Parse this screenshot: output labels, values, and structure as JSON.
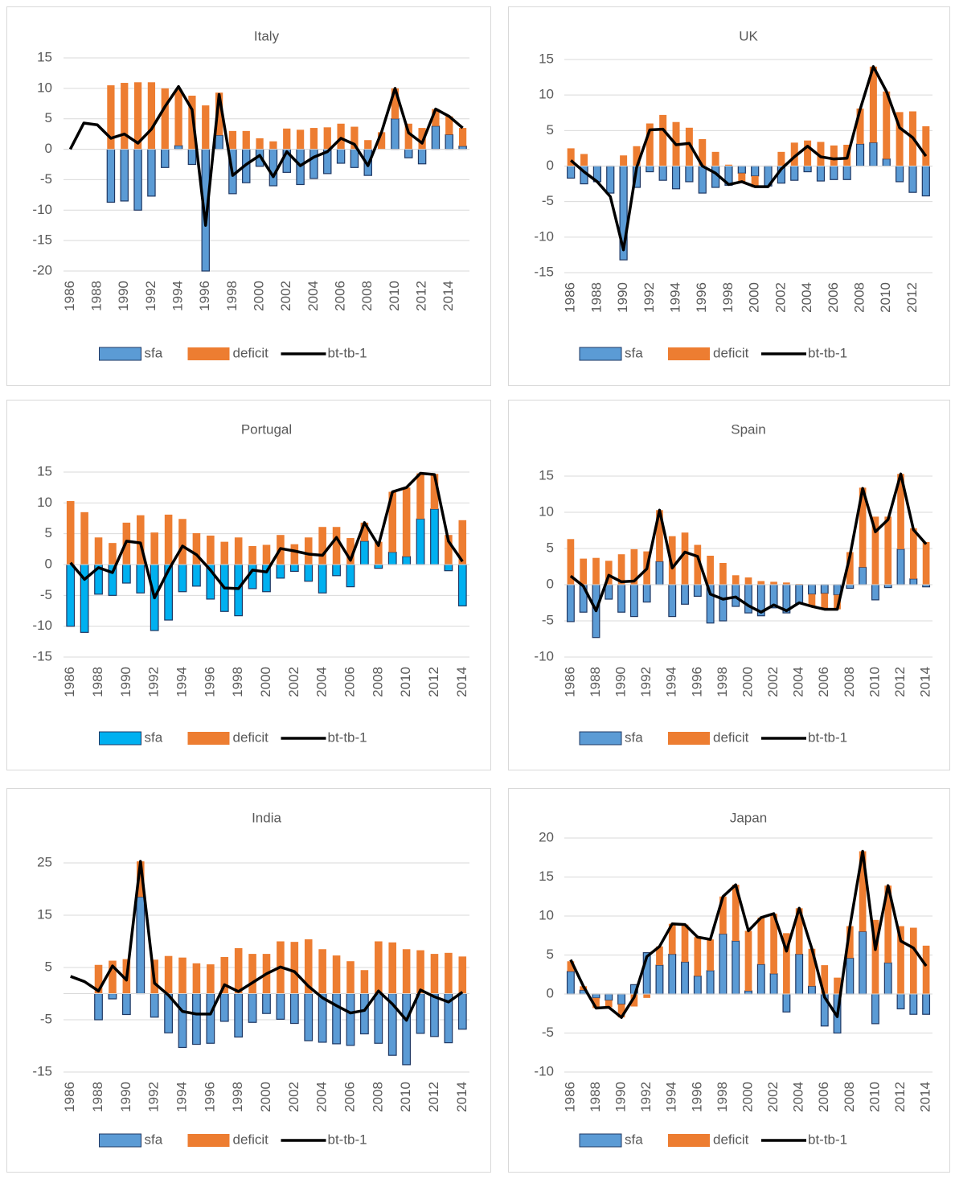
{
  "chart_data": [
    {
      "type": "combo",
      "title": "Italy",
      "grid": true,
      "legend": "bottom",
      "ylim": [
        -20,
        15
      ],
      "yticks": [
        -20,
        -15,
        -10,
        -5,
        0,
        5,
        10,
        15
      ],
      "categories": [
        "1986",
        null,
        "1988",
        null,
        "1990",
        null,
        "1992",
        null,
        "1994",
        null,
        "1996",
        null,
        "1998",
        null,
        "2000",
        null,
        "2002",
        null,
        "2004",
        null,
        "2006",
        null,
        "2008",
        null,
        "2010",
        null,
        "2012",
        null,
        "2014",
        null
      ],
      "series": [
        {
          "name": "sfa",
          "kind": "bar",
          "color": "#5b9bd5",
          "values": [
            null,
            null,
            null,
            -8.7,
            -8.5,
            -10,
            -7.7,
            -3,
            0.6,
            -2.5,
            -20,
            2.3,
            -7.3,
            -5.5,
            -2.8,
            -6,
            -3.8,
            -5.8,
            -4.8,
            -4,
            -2.3,
            -3,
            -4.3,
            null,
            5,
            -1.4,
            -2.4,
            3.8,
            2.4,
            0.5
          ]
        },
        {
          "name": "deficit",
          "kind": "bar",
          "color": "#ed7d31",
          "values": [
            null,
            null,
            null,
            10.5,
            10.9,
            11,
            11,
            10,
            9.2,
            8.8,
            7.2,
            7,
            3,
            3,
            1.8,
            1.3,
            3.4,
            3.2,
            3.5,
            3.6,
            4.2,
            3.7,
            1.5,
            2.8,
            5,
            4.2,
            3.5,
            2.8,
            3,
            3
          ]
        },
        {
          "name": "bt-tb-1",
          "kind": "line",
          "color": "#000000",
          "values": [
            0,
            4.3,
            4,
            1.8,
            2.5,
            1,
            3.3,
            7,
            10.3,
            6.5,
            -12.5,
            9,
            -4.3,
            -2.5,
            -1,
            -4.5,
            -0.4,
            -2.7,
            -1.3,
            -0.4,
            1.8,
            0.8,
            -2.7,
            2.8,
            10,
            2.7,
            1,
            6.6,
            5.4,
            3.5
          ]
        }
      ]
    },
    {
      "type": "combo",
      "title": "UK",
      "grid": true,
      "legend": "bottom",
      "ylim": [
        -15,
        15
      ],
      "yticks": [
        -15,
        -10,
        -5,
        0,
        5,
        10,
        15
      ],
      "categories": [
        "1986",
        null,
        "1988",
        null,
        "1990",
        null,
        "1992",
        null,
        "1994",
        null,
        "1996",
        null,
        "1998",
        null,
        "2000",
        null,
        "2002",
        null,
        "2004",
        null,
        "2006",
        null,
        "2008",
        null,
        "2010",
        null,
        "2012",
        null
      ],
      "series": [
        {
          "name": "sfa",
          "kind": "bar",
          "color": "#5b9bd5",
          "values": [
            -1.7,
            -2.5,
            -2.2,
            -3.8,
            -13.2,
            -3,
            -0.8,
            -2,
            -3.2,
            -2.2,
            -3.8,
            -3,
            -2.7,
            -1,
            -1.4,
            -2.8,
            -2.4,
            -2,
            -0.8,
            -2.1,
            -1.9,
            -1.9,
            3.1,
            3.3,
            1,
            -2.2,
            -3.7,
            -4.2
          ]
        },
        {
          "name": "deficit",
          "kind": "bar",
          "color": "#ed7d31",
          "values": [
            2.5,
            1.7,
            0,
            0,
            1.5,
            2.8,
            6,
            7.2,
            6.2,
            5.4,
            3.8,
            2,
            0.2,
            -1.2,
            -1.6,
            0,
            2,
            3.3,
            3.6,
            3.4,
            2.9,
            3,
            5,
            10.7,
            9.5,
            7.6,
            7.7,
            5.6
          ]
        },
        {
          "name": "bt-tb-1",
          "kind": "line",
          "color": "#000000",
          "values": [
            0.8,
            -0.8,
            -2.2,
            -4.3,
            -11.8,
            -0.2,
            5.1,
            5.2,
            3,
            3.2,
            0,
            -1,
            -2.6,
            -2.2,
            -2.9,
            -2.9,
            -0.4,
            1.3,
            2.8,
            1.3,
            1,
            1.1,
            8,
            14,
            10.5,
            5.4,
            4,
            1.4
          ]
        }
      ]
    },
    {
      "type": "combo",
      "title": "Portugal",
      "grid": true,
      "legend": "bottom",
      "ylim": [
        -15,
        15
      ],
      "yticks": [
        -15,
        -10,
        -5,
        0,
        5,
        10,
        15
      ],
      "categories": [
        "1986",
        null,
        "1988",
        null,
        "1990",
        null,
        "1992",
        null,
        "1994",
        null,
        "1996",
        null,
        "1998",
        null,
        "2000",
        null,
        "2002",
        null,
        "2004",
        null,
        "2006",
        null,
        "2008",
        null,
        "2010",
        null,
        "2012",
        null,
        "2014"
      ],
      "series": [
        {
          "name": "sfa",
          "kind": "bar",
          "color": "#00b0f0",
          "values": [
            -10,
            -11,
            -4.8,
            -5,
            -3,
            -4.6,
            -10.7,
            -9,
            -4.4,
            -3.5,
            -5.6,
            -7.6,
            -8.3,
            -3.9,
            -4.4,
            -2.2,
            -1.1,
            -2.7,
            -4.6,
            -1.8,
            -3.6,
            3.8,
            -0.6,
            2,
            1.3,
            7.4,
            9,
            -1,
            -6.7
          ]
        },
        {
          "name": "deficit",
          "kind": "bar",
          "color": "#ed7d31",
          "values": [
            10.3,
            8.5,
            4.4,
            3.5,
            6.8,
            8,
            5.2,
            8.1,
            7.4,
            5.1,
            4.7,
            3.7,
            4.4,
            3,
            3.2,
            4.8,
            3.3,
            4.4,
            6.1,
            6.1,
            4.3,
            3,
            3.7,
            9.8,
            11.2,
            7.4,
            5.7,
            4.8,
            7.2
          ]
        },
        {
          "name": "bt-tb-1",
          "kind": "line",
          "color": "#000000",
          "values": [
            0.3,
            -2.4,
            -0.5,
            -1.3,
            3.8,
            3.5,
            -5.4,
            -0.9,
            3,
            1.6,
            -0.9,
            -3.8,
            -3.9,
            -0.9,
            -1.2,
            2.6,
            2.2,
            1.7,
            1.5,
            4.4,
            0.7,
            6.8,
            3.1,
            11.8,
            12.5,
            14.8,
            14.6,
            3.8,
            0.5
          ]
        }
      ]
    },
    {
      "type": "combo",
      "title": "Spain",
      "grid": true,
      "legend": "bottom",
      "ylim": [
        -10,
        15
      ],
      "yticks": [
        -10,
        -5,
        0,
        5,
        10,
        15
      ],
      "categories": [
        "1986",
        null,
        "1988",
        null,
        "1990",
        null,
        "1992",
        null,
        "1994",
        null,
        "1996",
        null,
        "1998",
        null,
        "2000",
        null,
        "2002",
        null,
        "2004",
        null,
        "2006",
        null,
        "2008",
        null,
        "2010",
        null,
        "2012",
        null,
        "2014"
      ],
      "series": [
        {
          "name": "sfa",
          "kind": "bar",
          "color": "#5b9bd5",
          "values": [
            -5.1,
            -3.8,
            -7.3,
            -2,
            -3.8,
            -4.4,
            -2.4,
            3.2,
            -4.4,
            -2.7,
            -1.6,
            -5.3,
            -5,
            -3,
            -3.9,
            -4.3,
            -3.2,
            -3.9,
            -2.6,
            -1.3,
            -1.2,
            -1.4,
            -0.5,
            2.4,
            -2.1,
            -0.4,
            4.9,
            0.8,
            -0.3
          ]
        },
        {
          "name": "deficit",
          "kind": "bar",
          "color": "#ed7d31",
          "values": [
            6.3,
            3.6,
            3.7,
            3.3,
            4.2,
            4.9,
            4.6,
            7.1,
            6.7,
            7.2,
            5.5,
            4,
            3,
            1.3,
            1,
            0.5,
            0.4,
            0.3,
            0.1,
            -1.7,
            -2.2,
            -2,
            4.5,
            11,
            9.4,
            9.4,
            10.4,
            7,
            5.9
          ]
        },
        {
          "name": "bt-tb-1",
          "kind": "line",
          "color": "#000000",
          "values": [
            1.2,
            -0.2,
            -3.6,
            1.3,
            0.4,
            0.5,
            2.2,
            10.3,
            2.3,
            4.5,
            3.9,
            -1.3,
            -2,
            -1.7,
            -2.9,
            -3.8,
            -2.8,
            -3.6,
            -2.5,
            -3,
            -3.4,
            -3.4,
            4,
            13.3,
            7.3,
            9,
            15.3,
            7.6,
            5.6
          ]
        }
      ]
    },
    {
      "type": "combo",
      "title": "India",
      "grid": true,
      "legend": "bottom",
      "ylim": [
        -15,
        25
      ],
      "yticks": [
        -15,
        -5,
        5,
        15,
        25
      ],
      "categories": [
        "1986",
        null,
        "1988",
        null,
        "1990",
        null,
        "1992",
        null,
        "1994",
        null,
        "1996",
        null,
        "1998",
        null,
        "2000",
        null,
        "2002",
        null,
        "2004",
        null,
        "2006",
        null,
        "2008",
        null,
        "2010",
        null,
        "2012",
        null,
        "2014"
      ],
      "series": [
        {
          "name": "sfa",
          "kind": "bar",
          "color": "#5b9bd5",
          "values": [
            null,
            null,
            -5,
            -1,
            -4,
            18.5,
            -4.5,
            -7.5,
            -10.3,
            -9.7,
            -9.5,
            -5.3,
            -8.3,
            -5.5,
            -3.8,
            -4.9,
            -5.7,
            -9,
            -9.3,
            -9.6,
            -9.9,
            -7.7,
            -9.5,
            -11.8,
            -13.6,
            -7.6,
            -8.2,
            -9.4,
            -6.8
          ]
        },
        {
          "name": "deficit",
          "kind": "bar",
          "color": "#ed7d31",
          "values": [
            null,
            null,
            5.5,
            6.3,
            6.6,
            6.8,
            6.5,
            7.2,
            6.9,
            5.8,
            5.6,
            7,
            8.7,
            7.6,
            7.6,
            10,
            9.9,
            10.4,
            8.5,
            7.3,
            6.2,
            4.5,
            10,
            9.8,
            8.5,
            8.3,
            7.6,
            7.8,
            7.1
          ]
        },
        {
          "name": "bt-tb-1",
          "kind": "line",
          "color": "#000000",
          "values": [
            3.3,
            2.3,
            0.5,
            5.3,
            2.6,
            25.3,
            2,
            -0.3,
            -3.4,
            -3.9,
            -3.9,
            1.7,
            0.4,
            2.1,
            3.8,
            5.1,
            4.2,
            1.4,
            -0.8,
            -2.3,
            -3.7,
            -3.2,
            0.5,
            -2,
            -5.1,
            0.7,
            -0.6,
            -1.6,
            0.3
          ]
        }
      ]
    },
    {
      "type": "combo",
      "title": "Japan",
      "grid": true,
      "legend": "bottom",
      "ylim": [
        -10,
        20
      ],
      "yticks": [
        -10,
        -5,
        0,
        5,
        10,
        15,
        20
      ],
      "categories": [
        "1986",
        null,
        "1988",
        null,
        "1990",
        null,
        "1992",
        null,
        "1994",
        null,
        "1996",
        null,
        "1998",
        null,
        "2000",
        null,
        "2002",
        null,
        "2004",
        null,
        "2006",
        null,
        "2008",
        null,
        "2010",
        null,
        "2012",
        null,
        "2014"
      ],
      "series": [
        {
          "name": "sfa",
          "kind": "bar",
          "color": "#5b9bd5",
          "values": [
            2.9,
            0.5,
            -0.5,
            -0.8,
            -1.3,
            1.2,
            5.3,
            3.7,
            5.1,
            4.1,
            2.3,
            3,
            7.7,
            6.8,
            0.4,
            3.8,
            2.6,
            -2.3,
            5.1,
            1,
            -4.1,
            -5,
            4.6,
            8,
            -3.8,
            4,
            -1.9,
            -2.6,
            -2.6
          ]
        },
        {
          "name": "deficit",
          "kind": "bar",
          "color": "#ed7d31",
          "values": [
            1.3,
            0.5,
            -1.3,
            -0.9,
            -1.7,
            -1.6,
            -0.5,
            2.4,
            3.9,
            4.8,
            5,
            4,
            4.8,
            7.2,
            7.7,
            6,
            7.7,
            7.8,
            5.9,
            4.8,
            3.7,
            2.1,
            4.1,
            10.3,
            9.5,
            9.9,
            8.7,
            8.5,
            6.2
          ]
        },
        {
          "name": "bt-tb-1",
          "kind": "line",
          "color": "#000000",
          "values": [
            4.4,
            1,
            -1.8,
            -1.7,
            -3,
            -0.4,
            4.8,
            6.1,
            9,
            8.9,
            7.3,
            7,
            12.5,
            14,
            8.1,
            9.8,
            10.3,
            5.5,
            11,
            5.8,
            -0.4,
            -2.9,
            8.7,
            18.3,
            5.7,
            13.9,
            6.8,
            5.9,
            3.6
          ]
        }
      ]
    }
  ]
}
